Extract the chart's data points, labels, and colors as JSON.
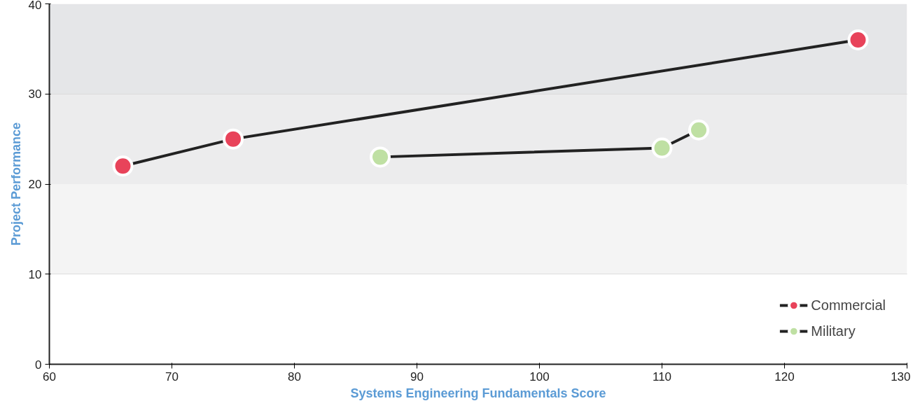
{
  "chart_data": {
    "type": "line",
    "xlabel": "Systems Engineering Fundamentals Score",
    "ylabel": "Project Performance",
    "xlim": [
      60,
      130
    ],
    "xticks": [
      60,
      70,
      80,
      90,
      100,
      110,
      120,
      130
    ],
    "ylim": [
      0,
      40
    ],
    "yticks": [
      0,
      10,
      20,
      30,
      40
    ],
    "grid": "y",
    "legend": "bottom right",
    "marker": "circle",
    "line_style": "solid",
    "bands": [
      {
        "axis": "y",
        "from": 10,
        "to": 20,
        "color": "#f4f4f4"
      },
      {
        "axis": "y",
        "from": 20,
        "to": 30,
        "color": "#ececed"
      },
      {
        "axis": "y",
        "from": 30,
        "to": 40,
        "color": "#e5e6e8"
      }
    ],
    "series": [
      {
        "name": "Commercial",
        "color": "#e8435a",
        "x": [
          66,
          75,
          126
        ],
        "values": [
          22,
          25,
          36
        ]
      },
      {
        "name": "Military",
        "color": "#bfe0a3",
        "x": [
          87,
          110,
          113
        ],
        "values": [
          23,
          24,
          26
        ]
      }
    ]
  }
}
